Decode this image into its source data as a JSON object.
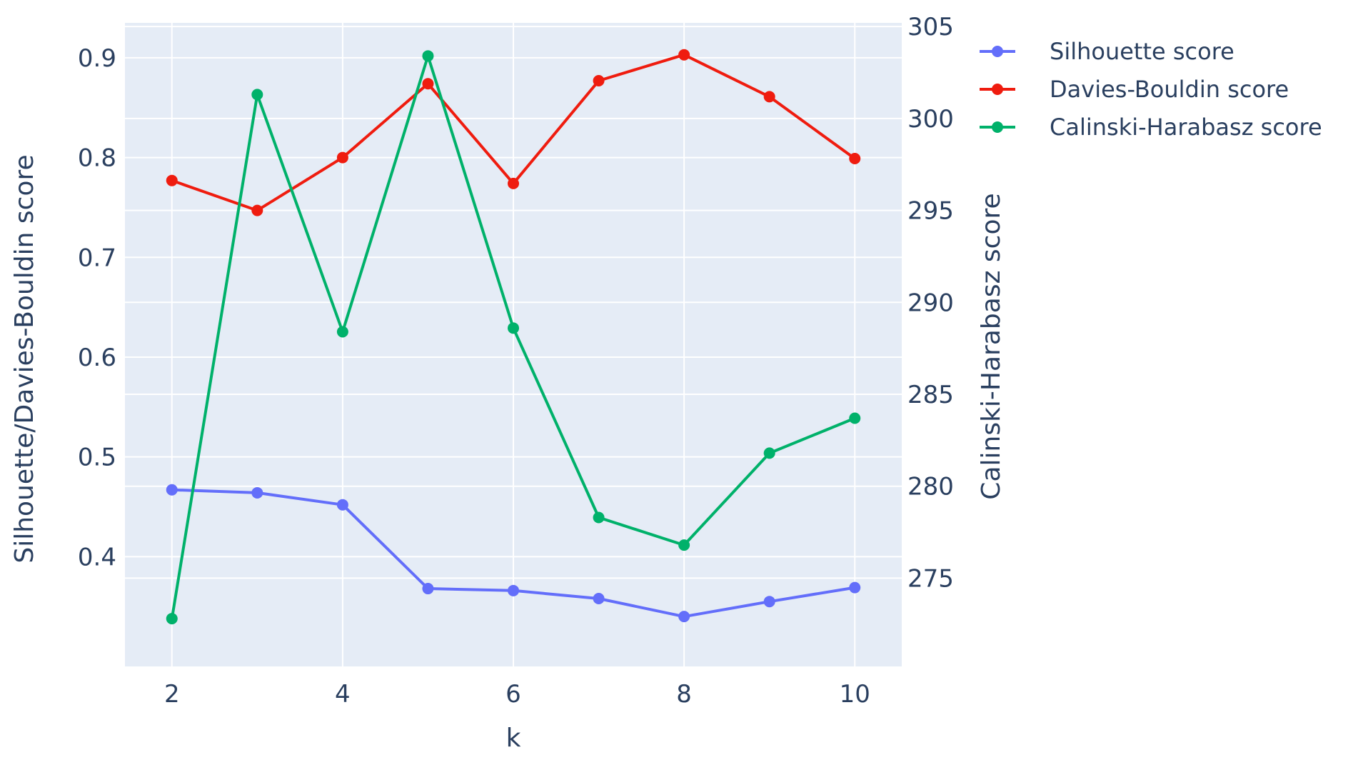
{
  "chart_data": {
    "type": "line",
    "x": [
      2,
      3,
      4,
      5,
      6,
      7,
      8,
      9,
      10
    ],
    "xlabel": "k",
    "ylabel": "Silhouette/Davies-Bouldin score",
    "y2label": "Calinski-Harabasz score",
    "xlim": [
      1.45,
      10.55
    ],
    "ylim": [
      0.29,
      0.935
    ],
    "y2lim": [
      270.2,
      305.2
    ],
    "x_ticks": [
      "2",
      "4",
      "6",
      "8",
      "10"
    ],
    "y_ticks": [
      "0.4",
      "0.5",
      "0.6",
      "0.7",
      "0.8",
      "0.9"
    ],
    "y2_ticks": [
      "275",
      "280",
      "285",
      "290",
      "295",
      "300",
      "305"
    ],
    "grid": true,
    "legend_position": "top-right, outside plot",
    "plot_background": "#e5ecf6",
    "series": [
      {
        "name": "Silhouette score",
        "axis": "left",
        "color": "#636efa",
        "values": [
          0.467,
          0.464,
          0.452,
          0.368,
          0.366,
          0.358,
          0.34,
          0.355,
          0.369
        ]
      },
      {
        "name": "Davies-Bouldin score",
        "axis": "left",
        "color": "#ef1c0f",
        "values": [
          0.777,
          0.747,
          0.8,
          0.874,
          0.774,
          0.877,
          0.903,
          0.861,
          0.799
        ]
      },
      {
        "name": "Calinski-Harabasz score",
        "axis": "right",
        "color": "#00b16a",
        "values": [
          272.8,
          301.3,
          288.4,
          303.4,
          288.6,
          278.3,
          276.8,
          281.8,
          283.7
        ]
      }
    ]
  }
}
